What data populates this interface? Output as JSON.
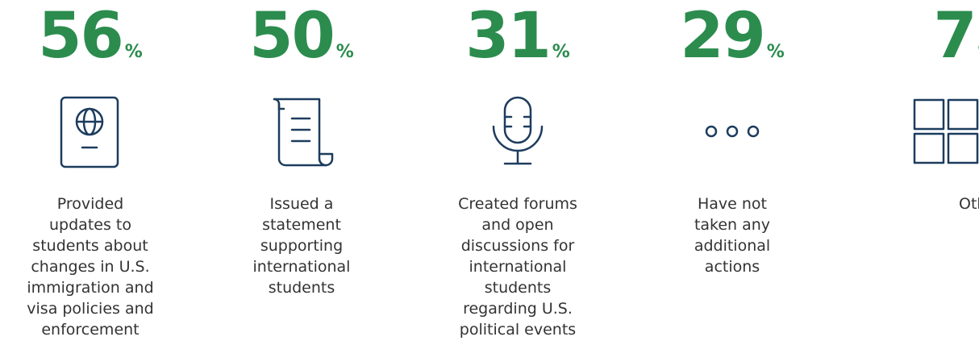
{
  "items": [
    {
      "value": 56,
      "unit": "%",
      "label": [
        "Provided",
        "updates to",
        "students about",
        "changes in U.S.",
        "immigration and",
        "visa policies and",
        "enforcement"
      ]
    },
    {
      "value": 50,
      "unit": "%",
      "label": [
        "Issued a",
        "statement",
        "supporting",
        "international",
        "students"
      ]
    },
    {
      "value": 31,
      "unit": "%",
      "label": [
        "Created forums",
        "and open",
        "discussions for",
        "international",
        "students",
        "regarding U.S.",
        "political events"
      ]
    },
    {
      "value": 29,
      "unit": "%",
      "label": [
        "Have not",
        "taken any",
        "additional",
        "actions"
      ]
    },
    {
      "value": 7,
      "unit": "%",
      "label": [
        "Other"
      ]
    }
  ]
}
